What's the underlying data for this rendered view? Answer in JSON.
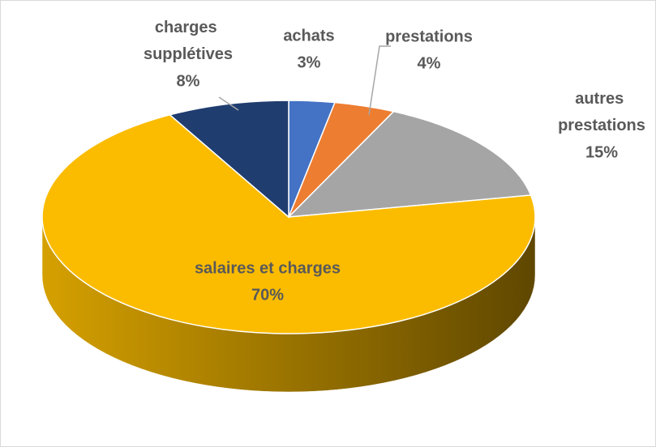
{
  "chart_data": {
    "type": "pie3d",
    "categories": [
      "achats",
      "prestations",
      "autres prestations",
      "salaires et charges",
      "charges supplétives"
    ],
    "values": [
      3,
      4,
      15,
      70,
      8
    ],
    "value_labels": [
      "3%",
      "4%",
      "15%",
      "70%",
      "8%"
    ],
    "colors": [
      "#4472c4",
      "#ed7d31",
      "#a5a5a5",
      "#fbbc00",
      "#203d70"
    ]
  }
}
